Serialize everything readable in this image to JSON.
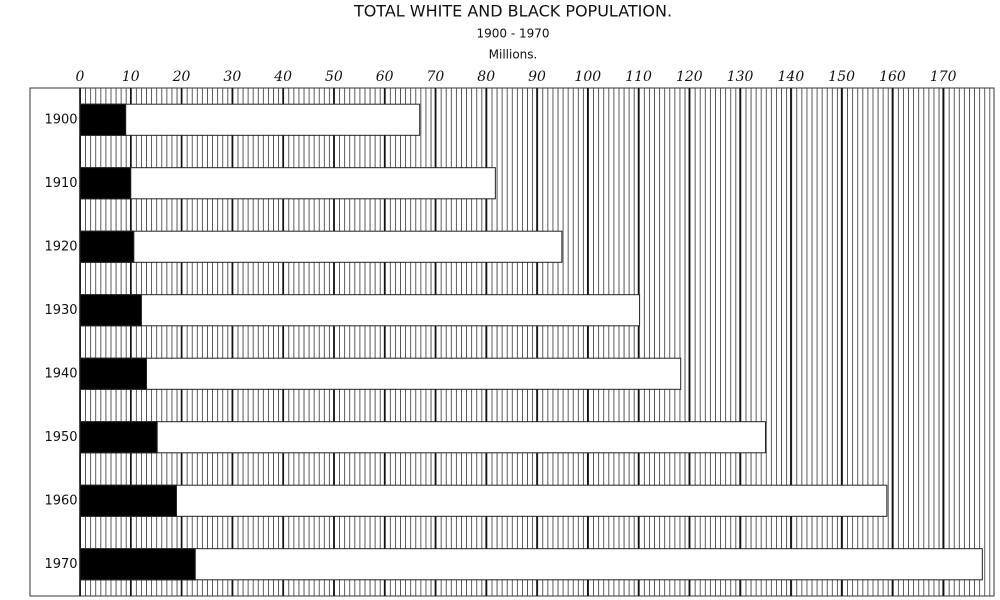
{
  "chart_data": {
    "type": "bar",
    "orientation": "horizontal",
    "title": "TOTAL WHITE AND BLACK POPULATION.",
    "subtitle": "1900 - 1970",
    "x_label": "Millions.",
    "categories": [
      "1900",
      "1910",
      "1920",
      "1930",
      "1940",
      "1950",
      "1960",
      "1970"
    ],
    "series": [
      {
        "color": "#ffffff",
        "values": [
          66.9,
          81.8,
          94.9,
          110.2,
          118.3,
          135.0,
          158.9,
          177.7
        ]
      },
      {
        "color": "#000000",
        "values": [
          9.0,
          10.0,
          10.6,
          12.1,
          13.1,
          15.2,
          19.0,
          22.7
        ]
      }
    ],
    "xlim": [
      0,
      180
    ],
    "xticks": [
      0,
      10,
      20,
      30,
      40,
      50,
      60,
      70,
      80,
      90,
      100,
      110,
      120,
      130,
      140,
      150,
      160,
      170
    ],
    "grid": true
  }
}
